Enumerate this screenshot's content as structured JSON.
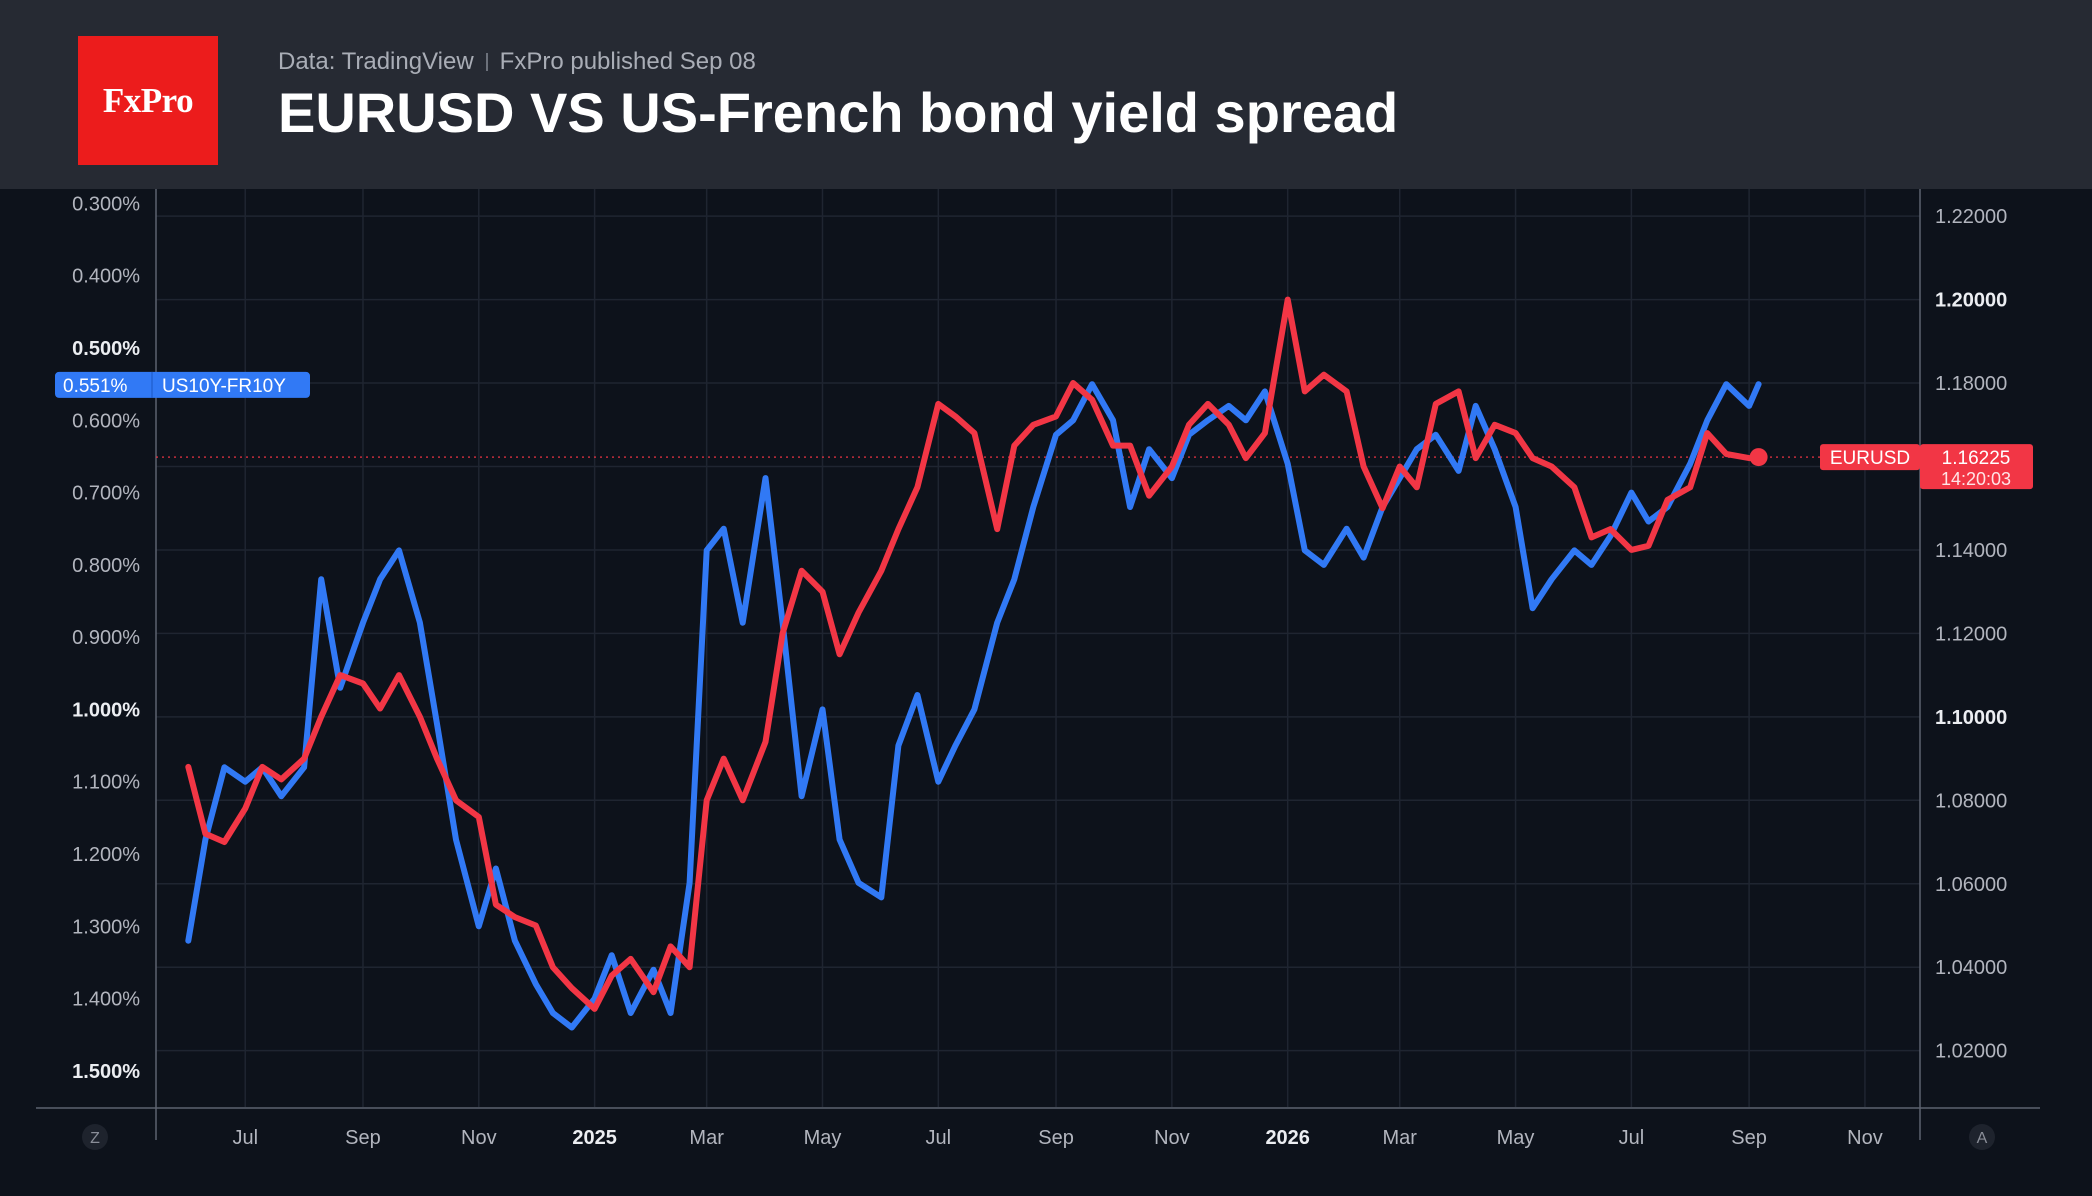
{
  "header": {
    "logo_text": "FxPro",
    "source": "Data: TradingView",
    "published": "FxPro published Sep 08",
    "title": "EURUSD VS US-French bond yield spread"
  },
  "colors": {
    "background": "#0d121b",
    "header_bg": "#262a33",
    "logo_bg": "#ec1c1c",
    "spread_series": "#3179f5",
    "eurusd_series": "#f23645",
    "grid": "#1f2531"
  },
  "chart_data": {
    "type": "line",
    "title": "EURUSD VS US-French bond yield spread",
    "x_ticks": [
      {
        "label": "Jul",
        "bold": false
      },
      {
        "label": "Sep",
        "bold": false
      },
      {
        "label": "Nov",
        "bold": false
      },
      {
        "label": "2025",
        "bold": true
      },
      {
        "label": "Mar",
        "bold": false
      },
      {
        "label": "May",
        "bold": false
      },
      {
        "label": "Jul",
        "bold": false
      },
      {
        "label": "Sep",
        "bold": false
      },
      {
        "label": "Nov",
        "bold": false
      },
      {
        "label": "2026",
        "bold": true
      },
      {
        "label": "Mar",
        "bold": false
      },
      {
        "label": "May",
        "bold": false
      },
      {
        "label": "Jul",
        "bold": false
      },
      {
        "label": "Sep",
        "bold": false
      },
      {
        "label": "Nov",
        "bold": false
      }
    ],
    "x_range": [
      "2024-05-15",
      "2026-11-30"
    ],
    "left_axis": {
      "label": "US10Y-FR10Y",
      "inverted": true,
      "range": [
        0.28,
        1.55
      ],
      "ticks": [
        {
          "value": 0.3,
          "label": "0.300%",
          "bold": false
        },
        {
          "value": 0.4,
          "label": "0.400%",
          "bold": false
        },
        {
          "value": 0.5,
          "label": "0.500%",
          "bold": true
        },
        {
          "value": 0.6,
          "label": "0.600%",
          "bold": false
        },
        {
          "value": 0.7,
          "label": "0.700%",
          "bold": false
        },
        {
          "value": 0.8,
          "label": "0.800%",
          "bold": false
        },
        {
          "value": 0.9,
          "label": "0.900%",
          "bold": false
        },
        {
          "value": 1.0,
          "label": "1.000%",
          "bold": true
        },
        {
          "value": 1.1,
          "label": "1.100%",
          "bold": false
        },
        {
          "value": 1.2,
          "label": "1.200%",
          "bold": false
        },
        {
          "value": 1.3,
          "label": "1.300%",
          "bold": false
        },
        {
          "value": 1.4,
          "label": "1.400%",
          "bold": false
        },
        {
          "value": 1.5,
          "label": "1.500%",
          "bold": true
        }
      ]
    },
    "right_axis": {
      "label": "EURUSD",
      "range": [
        1.0065,
        1.2265
      ],
      "ticks": [
        {
          "value": 1.22,
          "label": "1.22000",
          "bold": false
        },
        {
          "value": 1.2,
          "label": "1.20000",
          "bold": true
        },
        {
          "value": 1.18,
          "label": "1.18000",
          "bold": false
        },
        {
          "value": 1.16,
          "label": "1.16000",
          "bold": false
        },
        {
          "value": 1.14,
          "label": "1.14000",
          "bold": false
        },
        {
          "value": 1.12,
          "label": "1.12000",
          "bold": false
        },
        {
          "value": 1.1,
          "label": "1.10000",
          "bold": true
        },
        {
          "value": 1.08,
          "label": "1.08000",
          "bold": false
        },
        {
          "value": 1.06,
          "label": "1.06000",
          "bold": false
        },
        {
          "value": 1.04,
          "label": "1.04000",
          "bold": false
        },
        {
          "value": 1.02,
          "label": "1.02000",
          "bold": false
        }
      ]
    },
    "series": [
      {
        "name": "US10Y-FR10Y",
        "axis": "left",
        "unit": "%",
        "color": "#3179f5",
        "last_value_label": "0.551%",
        "last_value": 0.551,
        "x": [
          "2024-06-01",
          "2024-06-10",
          "2024-06-20",
          "2024-07-01",
          "2024-07-10",
          "2024-07-20",
          "2024-08-01",
          "2024-08-10",
          "2024-08-20",
          "2024-09-01",
          "2024-09-10",
          "2024-09-20",
          "2024-10-01",
          "2024-10-10",
          "2024-10-20",
          "2024-11-01",
          "2024-11-10",
          "2024-11-20",
          "2024-12-01",
          "2024-12-10",
          "2024-12-20",
          "2025-01-01",
          "2025-01-10",
          "2025-01-20",
          "2025-02-01",
          "2025-02-10",
          "2025-02-20",
          "2025-03-01",
          "2025-03-10",
          "2025-03-20",
          "2025-04-01",
          "2025-04-10",
          "2025-04-20",
          "2025-05-01",
          "2025-05-10",
          "2025-05-20",
          "2025-06-01",
          "2025-06-10",
          "2025-06-20",
          "2025-07-01",
          "2025-07-10",
          "2025-07-20",
          "2025-08-01",
          "2025-08-10",
          "2025-08-20",
          "2025-09-01",
          "2025-09-10",
          "2025-09-20",
          "2025-10-01",
          "2025-10-10",
          "2025-10-20",
          "2025-11-01",
          "2025-11-10",
          "2025-11-20",
          "2025-12-01",
          "2025-12-10",
          "2025-12-20",
          "2026-01-01",
          "2026-01-10",
          "2026-01-20",
          "2026-02-01",
          "2026-02-10",
          "2026-02-20",
          "2026-03-01",
          "2026-03-10",
          "2026-03-20",
          "2026-04-01",
          "2026-04-10",
          "2026-04-20",
          "2026-05-01",
          "2026-05-10",
          "2026-05-20",
          "2026-06-01",
          "2026-06-10",
          "2026-06-20",
          "2026-07-01",
          "2026-07-10",
          "2026-07-20",
          "2026-08-01",
          "2026-08-10",
          "2026-08-20",
          "2026-09-01",
          "2026-09-06"
        ],
        "y": [
          1.32,
          1.18,
          1.08,
          1.1,
          1.08,
          1.12,
          1.08,
          0.82,
          0.97,
          0.88,
          0.82,
          0.78,
          0.88,
          1.02,
          1.18,
          1.3,
          1.22,
          1.32,
          1.38,
          1.42,
          1.44,
          1.4,
          1.34,
          1.42,
          1.36,
          1.42,
          1.24,
          0.78,
          0.75,
          0.88,
          0.68,
          0.88,
          1.12,
          1.0,
          1.18,
          1.24,
          1.26,
          1.05,
          0.98,
          1.1,
          1.05,
          1.0,
          0.88,
          0.82,
          0.72,
          0.62,
          0.6,
          0.55,
          0.6,
          0.72,
          0.64,
          0.68,
          0.62,
          0.6,
          0.58,
          0.6,
          0.56,
          0.66,
          0.78,
          0.8,
          0.75,
          0.79,
          0.72,
          0.68,
          0.64,
          0.62,
          0.67,
          0.58,
          0.64,
          0.72,
          0.86,
          0.82,
          0.78,
          0.8,
          0.76,
          0.7,
          0.74,
          0.72,
          0.66,
          0.6,
          0.55,
          0.58,
          0.55
        ]
      },
      {
        "name": "EURUSD",
        "axis": "right",
        "color": "#f23645",
        "last_value_label": "1.16225",
        "last_value": 1.16225,
        "countdown_label": "14:20:03",
        "x": [
          "2024-06-01",
          "2024-06-10",
          "2024-06-20",
          "2024-07-01",
          "2024-07-10",
          "2024-07-20",
          "2024-08-01",
          "2024-08-10",
          "2024-08-20",
          "2024-09-01",
          "2024-09-10",
          "2024-09-20",
          "2024-10-01",
          "2024-10-10",
          "2024-10-20",
          "2024-11-01",
          "2024-11-10",
          "2024-11-20",
          "2024-12-01",
          "2024-12-10",
          "2024-12-20",
          "2025-01-01",
          "2025-01-10",
          "2025-01-20",
          "2025-02-01",
          "2025-02-10",
          "2025-02-20",
          "2025-03-01",
          "2025-03-10",
          "2025-03-20",
          "2025-04-01",
          "2025-04-10",
          "2025-04-20",
          "2025-05-01",
          "2025-05-10",
          "2025-05-20",
          "2025-06-01",
          "2025-06-10",
          "2025-06-20",
          "2025-07-01",
          "2025-07-10",
          "2025-07-20",
          "2025-08-01",
          "2025-08-10",
          "2025-08-20",
          "2025-09-01",
          "2025-09-10",
          "2025-09-20",
          "2025-10-01",
          "2025-10-10",
          "2025-10-20",
          "2025-11-01",
          "2025-11-10",
          "2025-11-20",
          "2025-12-01",
          "2025-12-10",
          "2025-12-20",
          "2026-01-01",
          "2026-01-10",
          "2026-01-20",
          "2026-02-01",
          "2026-02-10",
          "2026-02-20",
          "2026-03-01",
          "2026-03-10",
          "2026-03-20",
          "2026-04-01",
          "2026-04-10",
          "2026-04-20",
          "2026-05-01",
          "2026-05-10",
          "2026-05-20",
          "2026-06-01",
          "2026-06-10",
          "2026-06-20",
          "2026-07-01",
          "2026-07-10",
          "2026-07-20",
          "2026-08-01",
          "2026-08-10",
          "2026-08-20",
          "2026-09-01",
          "2026-09-06"
        ],
        "y": [
          1.088,
          1.072,
          1.07,
          1.078,
          1.088,
          1.085,
          1.09,
          1.1,
          1.11,
          1.108,
          1.102,
          1.11,
          1.1,
          1.09,
          1.08,
          1.076,
          1.055,
          1.052,
          1.05,
          1.04,
          1.035,
          1.03,
          1.038,
          1.042,
          1.034,
          1.045,
          1.04,
          1.08,
          1.09,
          1.08,
          1.094,
          1.12,
          1.135,
          1.13,
          1.115,
          1.125,
          1.135,
          1.145,
          1.155,
          1.175,
          1.172,
          1.168,
          1.145,
          1.165,
          1.17,
          1.172,
          1.18,
          1.176,
          1.165,
          1.165,
          1.153,
          1.16,
          1.17,
          1.175,
          1.17,
          1.162,
          1.168,
          1.2,
          1.178,
          1.182,
          1.178,
          1.16,
          1.15,
          1.16,
          1.155,
          1.175,
          1.178,
          1.162,
          1.17,
          1.168,
          1.162,
          1.16,
          1.155,
          1.143,
          1.145,
          1.14,
          1.141,
          1.152,
          1.155,
          1.168,
          1.163,
          1.162,
          1.162
        ]
      }
    ],
    "grid": true,
    "price_line_value": 1.16225,
    "corner_labels": {
      "left": "Z",
      "right": "A"
    }
  }
}
